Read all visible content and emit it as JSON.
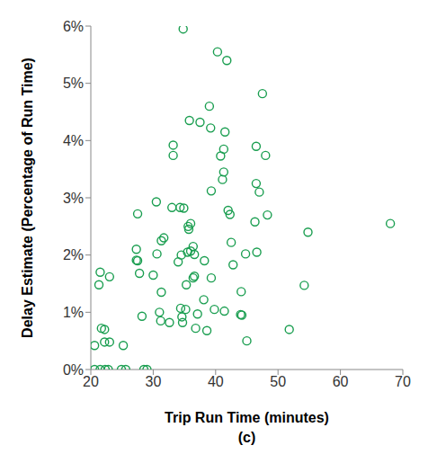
{
  "chart_data": {
    "type": "scatter",
    "xlabel": "Trip Run Time (minutes)",
    "caption": "(c)",
    "ylabel": "Delay Estimate (Percentage of Run Time)",
    "x": [
      34.8,
      40.3,
      41.8,
      47.5,
      39,
      35.8,
      37.5,
      39.2,
      41.5,
      33.2,
      46.5,
      41.3,
      33.2,
      40.8,
      48,
      41.3,
      41.1,
      46.5,
      47,
      39.3,
      30.5,
      33,
      34.3,
      34.9,
      42,
      48.3,
      42.3,
      27.5,
      46.3,
      68,
      36,
      35.6,
      35.7,
      54.8,
      31.7,
      31.3,
      42.5,
      27.3,
      36.4,
      35.5,
      36,
      46.6,
      44.8,
      34.5,
      30.6,
      36.6,
      27.3,
      27.5,
      34,
      38.2,
      42.8,
      21.5,
      27.8,
      30,
      36.6,
      36.4,
      39.3,
      23,
      21.3,
      35.3,
      54.2,
      31.3,
      44.1,
      38.1,
      35.2,
      34.4,
      39.8,
      41.4,
      31,
      37.1,
      44,
      44.2,
      34.6,
      28.2,
      31.2,
      32.6,
      34.7,
      38.6,
      36.8,
      51.8,
      21.7,
      22.2,
      45,
      22.2,
      23,
      20.6,
      25.2,
      20.6,
      21.5,
      22.3,
      22.8,
      24.9,
      25.6,
      28.5,
      29
    ],
    "values": [
      5.95,
      5.55,
      5.4,
      4.82,
      4.6,
      4.35,
      4.32,
      4.22,
      4.15,
      3.92,
      3.9,
      3.85,
      3.74,
      3.73,
      3.74,
      3.45,
      3.32,
      3.25,
      3.1,
      3.12,
      2.93,
      2.83,
      2.83,
      2.82,
      2.78,
      2.7,
      2.71,
      2.72,
      2.58,
      2.55,
      2.55,
      2.5,
      2.45,
      2.4,
      2.3,
      2.25,
      2.22,
      2.1,
      2.15,
      2.05,
      2.07,
      2.05,
      2.02,
      2.0,
      2.02,
      2.01,
      1.91,
      1.9,
      1.88,
      1.9,
      1.83,
      1.7,
      1.68,
      1.65,
      1.63,
      1.6,
      1.6,
      1.62,
      1.48,
      1.48,
      1.47,
      1.35,
      1.36,
      1.22,
      1.05,
      1.07,
      1.05,
      1.02,
      1.0,
      0.97,
      0.96,
      0.95,
      0.92,
      0.93,
      0.85,
      0.82,
      0.82,
      0.68,
      0.72,
      0.7,
      0.72,
      0.7,
      0.5,
      0.48,
      0.48,
      0.42,
      0.42,
      0,
      0,
      0,
      0,
      0,
      0,
      0,
      0
    ],
    "color": "#1a9e50",
    "marker": "open_circle",
    "grid": false,
    "xlim": [
      20,
      70
    ],
    "xticks": [
      20,
      30,
      40,
      50,
      60,
      70
    ],
    "ylim": [
      0,
      6
    ],
    "yticks": [
      {
        "value": 0,
        "label": "0%"
      },
      {
        "value": 1,
        "label": "1%"
      },
      {
        "value": 2,
        "label": "2%"
      },
      {
        "value": 3,
        "label": "3%"
      },
      {
        "value": 4,
        "label": "4%"
      },
      {
        "value": 5,
        "label": "5%"
      },
      {
        "value": 6,
        "label": "6%"
      }
    ]
  }
}
